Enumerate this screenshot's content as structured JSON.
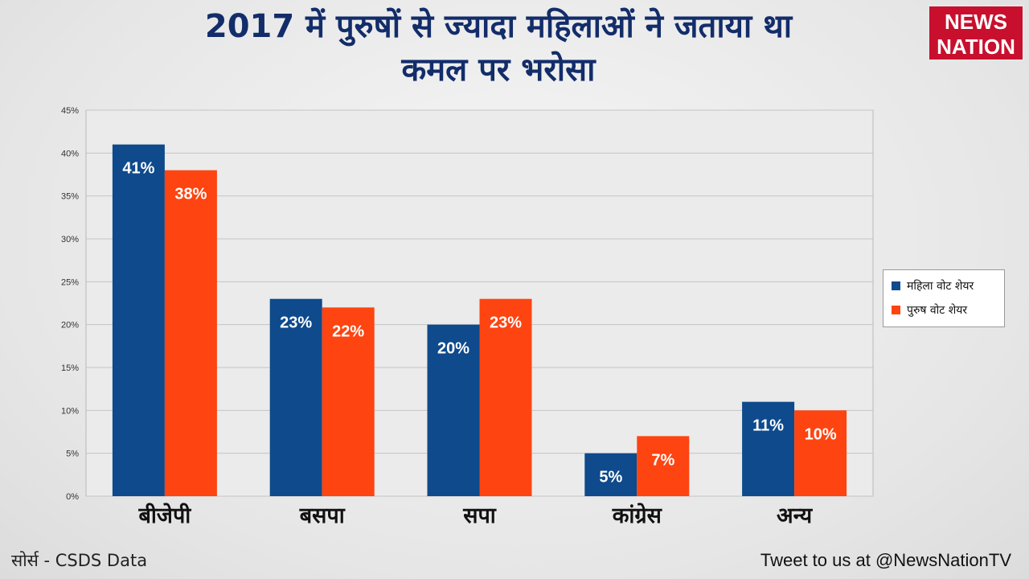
{
  "header": {
    "title_line1": "2017 में पुरुषों से ज्यादा महिलाओं ने जताया था",
    "title_line2": "कमल पर भरोसा",
    "logo_line1": "NEWS",
    "logo_line2": "NATION"
  },
  "footer": {
    "source": "सोर्स - CSDS Data",
    "tweet": "Tweet to us at @NewsNationTV"
  },
  "colors": {
    "women": "#0e4a8c",
    "men": "#fe4410",
    "grid": "#c4c4c4",
    "plot_bg": "#ebebeb"
  },
  "chart_data": {
    "type": "bar",
    "title": "2017 में पुरुषों से ज्यादा महिलाओं ने जताया था कमल पर भरोसा",
    "categories": [
      "बीजेपी",
      "बसपा",
      "सपा",
      "कांग्रेस",
      "अन्य"
    ],
    "series": [
      {
        "name": "महिला वोट शेयर",
        "values": [
          41,
          23,
          20,
          5,
          11
        ],
        "labels": [
          "41%",
          "23%",
          "20%",
          "5%",
          "11%"
        ]
      },
      {
        "name": "पुरुष वोट शेयर",
        "values": [
          38,
          22,
          23,
          7,
          10
        ],
        "labels": [
          "38%",
          "22%",
          "23%",
          "7%",
          "10%"
        ]
      }
    ],
    "y_ticks": [
      0,
      5,
      10,
      15,
      20,
      25,
      30,
      35,
      40,
      45
    ],
    "y_tick_labels": [
      "0%",
      "5%",
      "10%",
      "15%",
      "20%",
      "25%",
      "30%",
      "35%",
      "40%",
      "45%"
    ],
    "ylim": [
      0,
      45
    ],
    "xlabel": "",
    "ylabel": "",
    "grid": true,
    "legend_position": "right"
  }
}
